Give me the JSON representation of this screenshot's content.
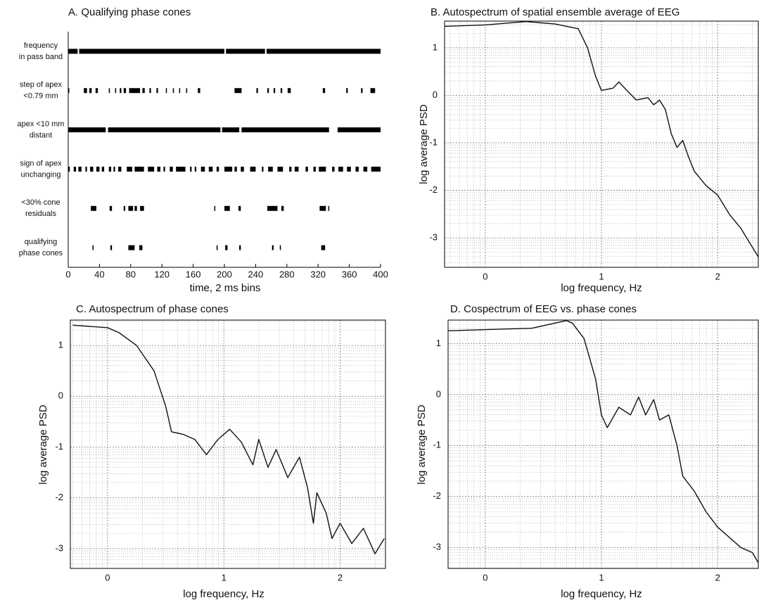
{
  "chart_data": [
    {
      "type": "raster",
      "title": "A. Qualifying phase cones",
      "xlabel": "time, 2 ms bins",
      "categories": [
        [
          "frequency",
          "in pass band"
        ],
        [
          "step of apex",
          "<0.79 mm"
        ],
        [
          "apex <10 mm",
          "distant"
        ],
        [
          "sign of apex",
          "unchanging"
        ],
        [
          "<30% cone",
          "residuals"
        ],
        [
          "qualifying",
          "phase cones"
        ]
      ],
      "intervals": [
        [
          [
            0,
            12
          ],
          [
            14,
            200
          ],
          [
            202,
            252
          ],
          [
            254,
            400
          ]
        ],
        [
          [
            0,
            1
          ],
          [
            20,
            24
          ],
          [
            27,
            30
          ],
          [
            35,
            38
          ],
          [
            52,
            53
          ],
          [
            60,
            61
          ],
          [
            66,
            68
          ],
          [
            71,
            74
          ],
          [
            78,
            92
          ],
          [
            95,
            98
          ],
          [
            104,
            106
          ],
          [
            113,
            115
          ],
          [
            125,
            126
          ],
          [
            134,
            135
          ],
          [
            142,
            143
          ],
          [
            151,
            152
          ],
          [
            166,
            169
          ],
          [
            213,
            222
          ],
          [
            241,
            243
          ],
          [
            255,
            257
          ],
          [
            263,
            265
          ],
          [
            272,
            274
          ],
          [
            281,
            285
          ],
          [
            326,
            329
          ],
          [
            356,
            358
          ],
          [
            375,
            377
          ],
          [
            387,
            393
          ]
        ],
        [
          [
            0,
            48
          ],
          [
            51,
            195
          ],
          [
            197,
            219
          ],
          [
            222,
            334
          ],
          [
            345,
            400
          ]
        ],
        [
          [
            0,
            2
          ],
          [
            7,
            10
          ],
          [
            13,
            17
          ],
          [
            22,
            24
          ],
          [
            28,
            32
          ],
          [
            36,
            40
          ],
          [
            43,
            46
          ],
          [
            52,
            55
          ],
          [
            58,
            60
          ],
          [
            64,
            68
          ],
          [
            75,
            82
          ],
          [
            85,
            97
          ],
          [
            102,
            110
          ],
          [
            114,
            118
          ],
          [
            122,
            124
          ],
          [
            130,
            134
          ],
          [
            138,
            150
          ],
          [
            156,
            158
          ],
          [
            162,
            164
          ],
          [
            170,
            175
          ],
          [
            180,
            185
          ],
          [
            190,
            193
          ],
          [
            200,
            210
          ],
          [
            213,
            216
          ],
          [
            221,
            225
          ],
          [
            233,
            240
          ],
          [
            248,
            250
          ],
          [
            256,
            262
          ],
          [
            268,
            275
          ],
          [
            283,
            286
          ],
          [
            290,
            295
          ],
          [
            304,
            307
          ],
          [
            314,
            317
          ],
          [
            321,
            330
          ],
          [
            338,
            341
          ],
          [
            346,
            352
          ],
          [
            357,
            362
          ],
          [
            368,
            372
          ],
          [
            378,
            383
          ],
          [
            388,
            400
          ]
        ],
        [
          [
            29,
            36
          ],
          [
            53,
            56
          ],
          [
            71,
            73
          ],
          [
            77,
            83
          ],
          [
            85,
            88
          ],
          [
            92,
            97
          ],
          [
            187,
            188
          ],
          [
            200,
            207
          ],
          [
            218,
            221
          ],
          [
            255,
            268
          ],
          [
            273,
            276
          ],
          [
            322,
            330
          ],
          [
            333,
            334
          ]
        ],
        [
          [
            31,
            32
          ],
          [
            54,
            56
          ],
          [
            77,
            85
          ],
          [
            91,
            95
          ],
          [
            190,
            191
          ],
          [
            201,
            204
          ],
          [
            219,
            221
          ],
          [
            261,
            263
          ],
          [
            271,
            272
          ],
          [
            324,
            329
          ]
        ]
      ],
      "color": "#000000",
      "xlim": [
        0,
        400
      ],
      "xticks": [
        0,
        40,
        80,
        120,
        160,
        200,
        240,
        280,
        320,
        360,
        400
      ]
    },
    {
      "type": "line",
      "title": "B. Autospectrum of spatial ensemble average of EEG",
      "xlabel": "log frequency, Hz",
      "ylabel": "log average PSD",
      "x": [
        -0.35,
        0,
        0.35,
        0.6,
        0.8,
        0.88,
        0.95,
        1.0,
        1.1,
        1.15,
        1.22,
        1.3,
        1.4,
        1.45,
        1.5,
        1.55,
        1.6,
        1.65,
        1.7,
        1.75,
        1.8,
        1.9,
        2.0,
        2.1,
        2.2,
        2.3,
        2.35
      ],
      "values": [
        1.45,
        1.48,
        1.55,
        1.5,
        1.4,
        1.0,
        0.4,
        0.1,
        0.15,
        0.28,
        0.1,
        -0.1,
        -0.05,
        -0.2,
        -0.1,
        -0.3,
        -0.8,
        -1.1,
        -0.95,
        -1.3,
        -1.6,
        -1.9,
        -2.1,
        -2.5,
        -2.8,
        -3.2,
        -3.4
      ],
      "color": "#111111",
      "xlim": [
        -0.35,
        2.35
      ],
      "ylim": [
        -3.62,
        1.56
      ],
      "xticks": [
        0,
        1,
        2
      ],
      "yticks": [
        -3,
        -2,
        -1,
        0,
        1
      ],
      "grid": true,
      "minor_grid": "log"
    },
    {
      "type": "line",
      "title": "C. Autospectrum of phase cones",
      "xlabel": "log frequency, Hz",
      "ylabel": "log average PSD",
      "x": [
        -0.3,
        0,
        0.1,
        0.25,
        0.4,
        0.5,
        0.55,
        0.65,
        0.75,
        0.85,
        0.95,
        1.05,
        1.15,
        1.25,
        1.3,
        1.38,
        1.45,
        1.55,
        1.65,
        1.72,
        1.77,
        1.8,
        1.88,
        1.93,
        2.0,
        2.1,
        2.2,
        2.3,
        2.38
      ],
      "values": [
        1.4,
        1.35,
        1.25,
        1.0,
        0.5,
        -0.2,
        -0.7,
        -0.75,
        -0.85,
        -1.15,
        -0.85,
        -0.65,
        -0.9,
        -1.35,
        -0.85,
        -1.4,
        -1.05,
        -1.6,
        -1.2,
        -1.8,
        -2.5,
        -1.9,
        -2.3,
        -2.8,
        -2.5,
        -2.9,
        -2.6,
        -3.1,
        -2.8
      ],
      "color": "#111111",
      "xlim": [
        -0.32,
        2.39
      ],
      "ylim": [
        -3.39,
        1.5
      ],
      "xticks": [
        0,
        1,
        2
      ],
      "yticks": [
        -3,
        -2,
        -1,
        0,
        1
      ],
      "grid": true,
      "minor_grid": "log"
    },
    {
      "type": "line",
      "title": "D. Cospectrum of EEG vs. phase cones",
      "xlabel": "log frequency, Hz",
      "ylabel": "log average PSD",
      "x": [
        -0.32,
        0.4,
        0.7,
        0.75,
        0.85,
        0.95,
        1.0,
        1.05,
        1.15,
        1.25,
        1.32,
        1.38,
        1.45,
        1.5,
        1.58,
        1.65,
        1.7,
        1.8,
        1.9,
        2.0,
        2.1,
        2.2,
        2.3,
        2.35
      ],
      "values": [
        1.25,
        1.3,
        1.45,
        1.4,
        1.1,
        0.3,
        -0.4,
        -0.65,
        -0.25,
        -0.4,
        -0.05,
        -0.4,
        -0.1,
        -0.5,
        -0.4,
        -1.0,
        -1.6,
        -1.9,
        -2.3,
        -2.6,
        -2.8,
        -3.0,
        -3.1,
        -3.3
      ],
      "color": "#111111",
      "xlim": [
        -0.32,
        2.35
      ],
      "ylim": [
        -3.41,
        1.46
      ],
      "xticks": [
        0,
        1,
        2
      ],
      "yticks": [
        -3,
        -2,
        -1,
        0,
        1
      ],
      "grid": true,
      "minor_grid": "log"
    }
  ]
}
